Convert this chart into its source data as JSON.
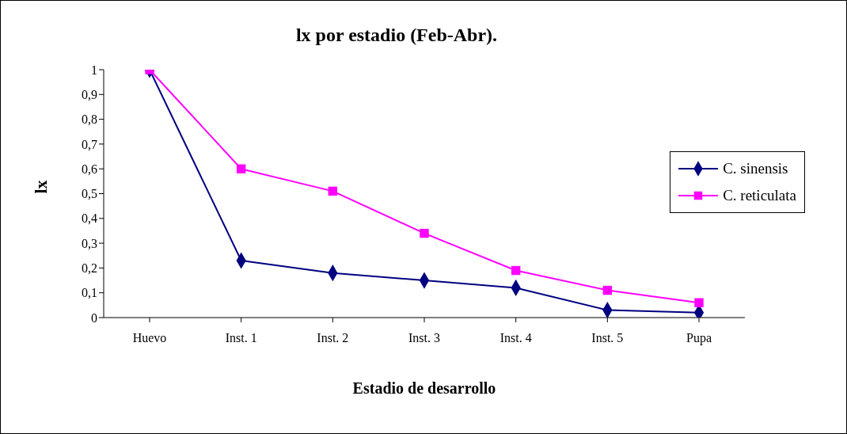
{
  "chart_data": {
    "type": "line",
    "title": "lx  por estadio (Feb-Abr).",
    "xlabel": "Estadio de desarrollo",
    "ylabel": "lx",
    "categories": [
      "Huevo",
      "Inst. 1",
      "Inst. 2",
      "Inst. 3",
      "Inst. 4",
      "Inst. 5",
      "Pupa"
    ],
    "series": [
      {
        "name": "C. sinensis",
        "color": "#000080",
        "marker": "diamond",
        "values": [
          1,
          0.23,
          0.18,
          0.15,
          0.12,
          0.03,
          0.02
        ]
      },
      {
        "name": "C. reticulata",
        "color": "#ff00ff",
        "marker": "square",
        "values": [
          1,
          0.6,
          0.51,
          0.34,
          0.19,
          0.11,
          0.06
        ]
      }
    ],
    "ylim": [
      0,
      1
    ],
    "yticks": [
      0,
      {
        "value": 0.1,
        "label": "0,1"
      },
      {
        "value": 0.2,
        "label": "0,2"
      },
      {
        "value": 0.3,
        "label": "0,3"
      },
      {
        "value": 0.4,
        "label": "0,4"
      },
      {
        "value": 0.5,
        "label": "0,5"
      },
      {
        "value": 0.6,
        "label": "0,6"
      },
      {
        "value": 0.7,
        "label": "0,7"
      },
      {
        "value": 0.8,
        "label": "0,8"
      },
      {
        "value": 0.9,
        "label": "0,9"
      },
      1
    ],
    "grid": false,
    "legend": "right",
    "line_style": "solid"
  }
}
